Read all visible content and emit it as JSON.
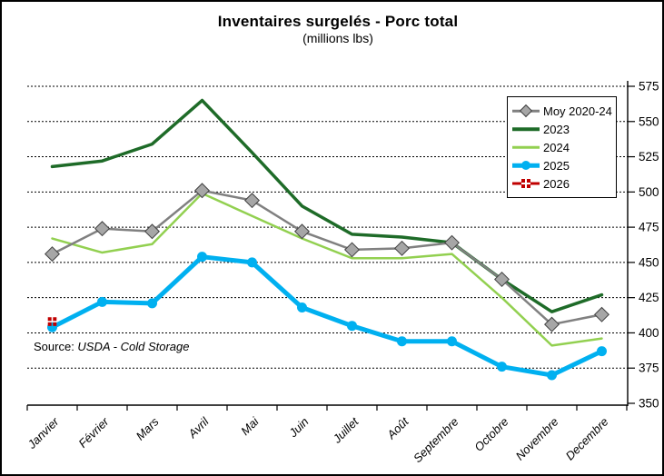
{
  "title": "Inventaires surgelés - Porc total",
  "subtitle": "(millions lbs)",
  "source": {
    "prefix": "Source: ",
    "text": "USDA - Cold Storage"
  },
  "chart_data": {
    "type": "line",
    "title": "Inventaires surgelés - Porc total",
    "subtitle": "(millions lbs)",
    "categories": [
      "Janvier",
      "Février",
      "Mars",
      "Avril",
      "Mai",
      "Juin",
      "Juillet",
      "Août",
      "Septembre",
      "Octobre",
      "Novembre",
      "Decembre"
    ],
    "series": [
      {
        "name": "Moy 2020-24",
        "color": "#808080",
        "marker": "diamond",
        "marker_fill": "#a6a6a6",
        "width": 2.5,
        "z": 3,
        "values": [
          456,
          474,
          472,
          501,
          494,
          472,
          459,
          460,
          464,
          438,
          406,
          413
        ]
      },
      {
        "name": "2023",
        "color": "#1e6b28",
        "marker": "none",
        "width": 3.5,
        "z": 1,
        "values": [
          518,
          522,
          534,
          565,
          528,
          490,
          470,
          468,
          464,
          438,
          415,
          427
        ]
      },
      {
        "name": "2024",
        "color": "#92d050",
        "marker": "none",
        "width": 2.5,
        "z": 2,
        "values": [
          467,
          457,
          463,
          499,
          483,
          467,
          453,
          453,
          456,
          425,
          391,
          396
        ]
      },
      {
        "name": "2025",
        "color": "#00b0f0",
        "marker": "circle",
        "width": 5,
        "z": 4,
        "values": [
          404,
          422,
          421,
          454,
          450,
          418,
          405,
          394,
          394,
          376,
          370,
          387
        ]
      },
      {
        "name": "2026",
        "color": "#c00000",
        "marker": "cross",
        "width": 3,
        "z": 5,
        "values": [
          408,
          null,
          null,
          null,
          null,
          null,
          null,
          null,
          null,
          null,
          null,
          null
        ]
      }
    ],
    "ylim": [
      350,
      575
    ],
    "yticks": [
      350,
      375,
      400,
      425,
      450,
      475,
      500,
      525,
      550,
      575
    ],
    "grid": "horizontal-dashed",
    "legend_position": "top-right",
    "xlabel": "",
    "ylabel": ""
  }
}
